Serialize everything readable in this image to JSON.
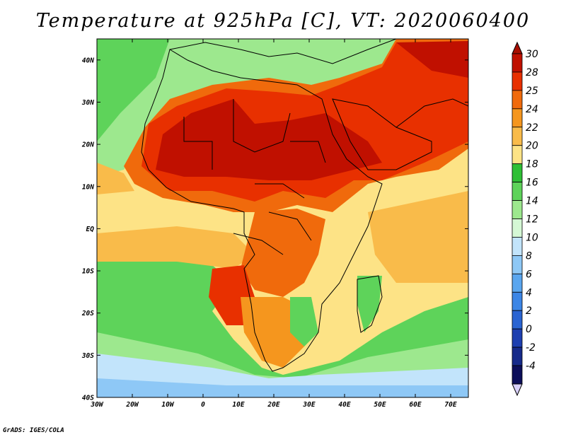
{
  "title": "Temperature at 925hPa [C], VT: 2020060400",
  "credit": "GrADS: IGES/COLA",
  "map": {
    "projection": "latlon",
    "lon_range": [
      -30,
      75
    ],
    "lat_range": [
      -40,
      45
    ],
    "lon_ticks": [
      {
        "value": -30,
        "label": "30W"
      },
      {
        "value": -20,
        "label": "20W"
      },
      {
        "value": -10,
        "label": "10W"
      },
      {
        "value": 0,
        "label": "0"
      },
      {
        "value": 10,
        "label": "10E"
      },
      {
        "value": 20,
        "label": "20E"
      },
      {
        "value": 30,
        "label": "30E"
      },
      {
        "value": 40,
        "label": "40E"
      },
      {
        "value": 50,
        "label": "50E"
      },
      {
        "value": 60,
        "label": "60E"
      },
      {
        "value": 70,
        "label": "70E"
      }
    ],
    "lat_ticks": [
      {
        "value": 40,
        "label": "40N"
      },
      {
        "value": 30,
        "label": "30N"
      },
      {
        "value": 20,
        "label": "20N"
      },
      {
        "value": 10,
        "label": "10N"
      },
      {
        "value": 0,
        "label": "EQ"
      },
      {
        "value": -10,
        "label": "10S"
      },
      {
        "value": -20,
        "label": "20S"
      },
      {
        "value": -30,
        "label": "30S"
      },
      {
        "value": -40,
        "label": "40S"
      }
    ]
  },
  "colorbar": {
    "levels": [
      {
        "label": "30",
        "color": "#c01000"
      },
      {
        "label": "28",
        "color": "#e83000"
      },
      {
        "label": "25",
        "color": "#f06a0c"
      },
      {
        "label": "24",
        "color": "#f5961e"
      },
      {
        "label": "22",
        "color": "#f9bb4a"
      },
      {
        "label": "20",
        "color": "#fde386"
      },
      {
        "label": "18",
        "color": "#2fbf35"
      },
      {
        "label": "16",
        "color": "#5ed35a"
      },
      {
        "label": "14",
        "color": "#9de88e"
      },
      {
        "label": "12",
        "color": "#d5f8d5"
      },
      {
        "label": "10",
        "color": "#c2e4fb"
      },
      {
        "label": "8",
        "color": "#8ec8f6"
      },
      {
        "label": "6",
        "color": "#5aa6ef"
      },
      {
        "label": "4",
        "color": "#3c86e6"
      },
      {
        "label": "2",
        "color": "#2a64d2"
      },
      {
        "label": "0",
        "color": "#1d3fb0"
      },
      {
        "label": "-2",
        "color": "#162a8a"
      },
      {
        "label": "-4",
        "color": "#0c0e5a"
      }
    ],
    "over_color": "#a80e00",
    "under_color": "#d8d0fa"
  }
}
